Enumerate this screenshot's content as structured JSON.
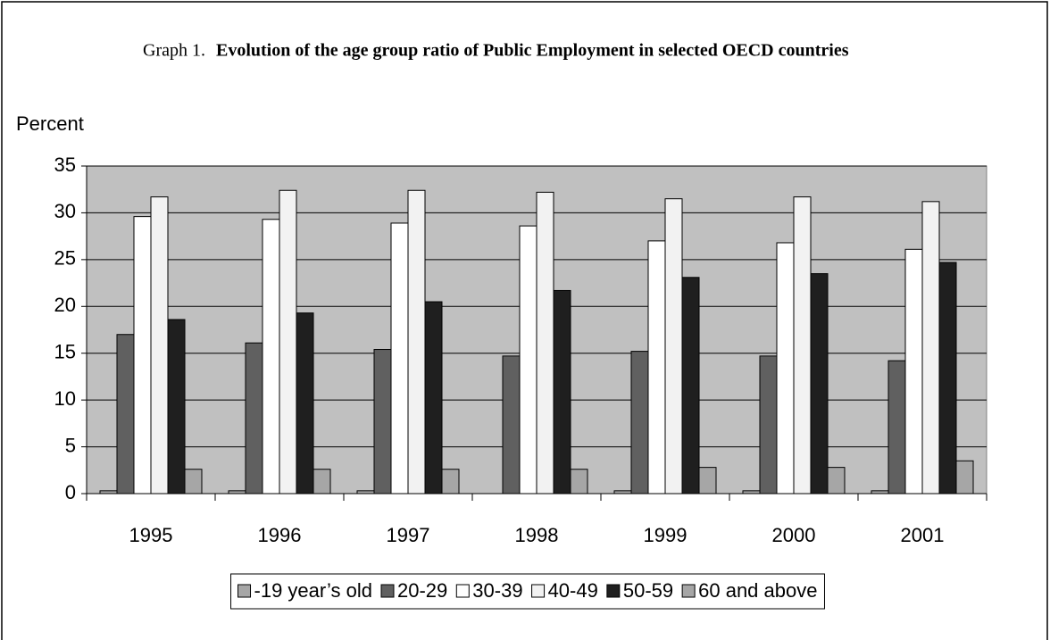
{
  "chart_data": {
    "type": "bar",
    "figure_label": "Graph 1.",
    "title": "Evolution of the age group ratio of Public Employment in selected OECD countries",
    "y_label": "Percent",
    "categories": [
      "1995",
      "1996",
      "1997",
      "1998",
      "1999",
      "2000",
      "2001"
    ],
    "series": [
      {
        "name": "-19 year’s old",
        "color": "#a6a6a6",
        "values": [
          0.3,
          0.3,
          0.3,
          0,
          0.3,
          0.3,
          0.3
        ]
      },
      {
        "name": "20-29",
        "color": "#606060",
        "values": [
          17.0,
          16.1,
          15.4,
          14.7,
          15.2,
          14.7,
          14.2
        ]
      },
      {
        "name": "30-39",
        "color": "#ffffff",
        "values": [
          29.6,
          29.3,
          28.9,
          28.6,
          27.0,
          26.8,
          26.1
        ]
      },
      {
        "name": "40-49",
        "color": "#f2f2f2",
        "values": [
          31.7,
          32.4,
          32.4,
          32.2,
          31.5,
          31.7,
          31.2
        ]
      },
      {
        "name": "50-59",
        "color": "#1f1f1f",
        "values": [
          18.6,
          19.3,
          20.5,
          21.7,
          23.1,
          23.5,
          24.7
        ]
      },
      {
        "name": "60 and above",
        "color": "#a6a6a6",
        "values": [
          2.6,
          2.6,
          2.6,
          2.6,
          2.8,
          2.8,
          3.5
        ]
      }
    ],
    "ylim": [
      0,
      35
    ],
    "yticks": [
      0,
      5,
      10,
      15,
      20,
      25,
      30,
      35
    ],
    "grid": true,
    "plot_background": "#c0c0c0",
    "legend": "bottom"
  }
}
